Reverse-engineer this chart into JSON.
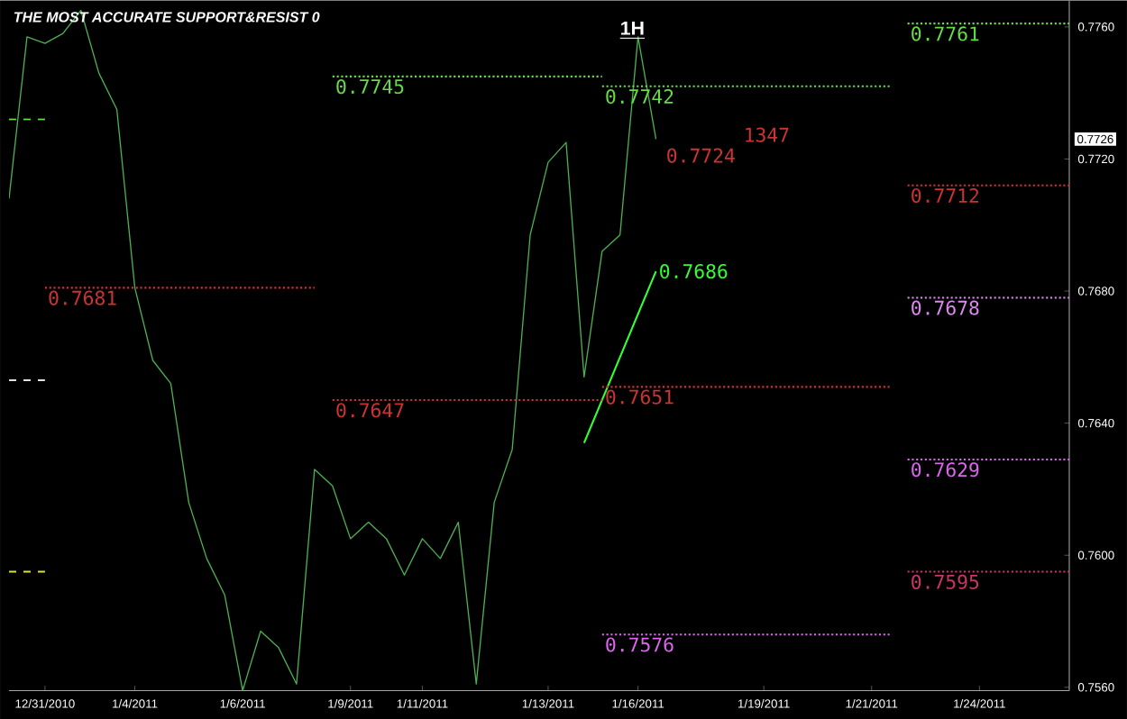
{
  "chart_data": {
    "type": "line",
    "title": "THE MOST ACCURATE SUPPORT&RESIST 0",
    "subtitle": "1H",
    "categories": [
      null,
      null,
      "12/31/2010",
      null,
      null,
      null,
      null,
      "1/4/2011",
      null,
      null,
      null,
      null,
      null,
      "1/6/2011",
      null,
      null,
      null,
      null,
      null,
      "1/9/2011",
      null,
      null,
      null,
      "1/11/2011",
      null,
      null,
      null,
      null,
      null,
      null,
      "1/13/2011",
      null,
      null,
      null,
      null,
      "1/16/2011",
      null,
      null,
      null,
      null,
      null,
      null,
      "1/19/2011",
      null,
      null,
      null,
      null,
      null,
      "1/21/2011",
      null,
      null,
      null,
      null,
      null,
      "1/24/2011",
      null,
      null,
      null,
      null,
      null
    ],
    "ylim": [
      0.7559,
      0.7768
    ],
    "yticks": [
      {
        "value": 0.756,
        "label": "0.7560"
      },
      {
        "value": 0.76,
        "label": "0.7600"
      },
      {
        "value": 0.764,
        "label": "0.7640"
      },
      {
        "value": 0.768,
        "label": "0.7680"
      },
      {
        "value": 0.772,
        "label": "0.7720"
      },
      {
        "value": 0.776,
        "label": "0.7760"
      }
    ],
    "grid": false,
    "marker": "none",
    "series": [
      {
        "color": "#4caf50",
        "line_style": "solid",
        "values": [
          0.7708,
          0.7757,
          0.7755,
          0.7758,
          0.7765,
          0.7746,
          0.7735,
          0.7681,
          0.7659,
          0.7652,
          0.7616,
          0.7599,
          0.7588,
          0.7559,
          0.7577,
          0.7572,
          0.7561,
          0.7626,
          0.7621,
          0.7605,
          0.761,
          0.7605,
          0.7594,
          0.7605,
          0.7599,
          0.761,
          0.7561,
          0.7616,
          0.7632,
          0.7697,
          0.7719,
          0.7725,
          0.7654,
          0.7692,
          0.7697,
          0.7757,
          0.7726,
          null,
          null,
          null,
          null,
          null,
          null,
          null,
          null,
          null,
          null,
          null,
          null,
          null,
          null,
          null,
          null,
          null,
          null,
          null,
          null,
          null,
          null,
          null
        ]
      },
      {
        "color": "#33ff33",
        "line_style": "solid",
        "values": [
          null,
          null,
          null,
          null,
          null,
          null,
          null,
          null,
          null,
          null,
          null,
          null,
          null,
          null,
          null,
          null,
          null,
          null,
          null,
          null,
          null,
          null,
          null,
          null,
          null,
          null,
          null,
          null,
          null,
          null,
          null,
          null,
          0.7634,
          0.7647,
          0.766,
          0.7673,
          0.7686,
          null,
          null,
          null,
          null,
          null,
          null,
          null,
          null,
          null,
          null,
          null,
          null,
          null,
          null,
          null,
          null,
          null,
          null,
          null,
          null,
          null,
          null,
          null
        ],
        "value_labels": [
          null,
          null,
          null,
          null,
          null,
          null,
          null,
          null,
          null,
          null,
          null,
          null,
          null,
          null,
          null,
          null,
          null,
          null,
          null,
          null,
          null,
          null,
          null,
          null,
          null,
          null,
          null,
          null,
          null,
          null,
          null,
          null,
          null,
          null,
          null,
          null,
          "0.7686",
          null,
          null,
          null,
          null,
          null,
          null,
          null,
          null,
          null,
          null,
          null,
          null,
          null,
          null,
          null,
          null,
          null,
          null,
          null,
          null,
          null,
          null,
          null
        ]
      },
      {
        "color": "#66dd44",
        "line_style": "dotted",
        "values": [
          null,
          null,
          null,
          null,
          null,
          null,
          null,
          null,
          null,
          null,
          null,
          null,
          null,
          null,
          null,
          null,
          null,
          null,
          null,
          null,
          null,
          null,
          null,
          null,
          null,
          null,
          null,
          null,
          null,
          null,
          null,
          null,
          null,
          null,
          null,
          null,
          null,
          null,
          null,
          null,
          null,
          null,
          null,
          null,
          null,
          null,
          null,
          null,
          null,
          null,
          0.7761,
          0.7761,
          0.7761,
          0.7761,
          0.7761,
          0.7761,
          0.7761,
          0.7761,
          0.7761,
          0.7761
        ],
        "value_labels": [
          null,
          null,
          null,
          null,
          null,
          null,
          null,
          null,
          null,
          null,
          null,
          null,
          null,
          null,
          null,
          null,
          null,
          null,
          null,
          null,
          null,
          null,
          null,
          null,
          null,
          null,
          null,
          null,
          null,
          null,
          null,
          null,
          null,
          null,
          null,
          null,
          null,
          null,
          null,
          null,
          null,
          null,
          null,
          null,
          null,
          null,
          null,
          null,
          null,
          null,
          "0.7761",
          null,
          null,
          null,
          null,
          null,
          null,
          null,
          null,
          null
        ]
      },
      {
        "color": "#66dd44",
        "line_style": "dotted",
        "values": [
          null,
          null,
          null,
          null,
          null,
          null,
          null,
          null,
          null,
          null,
          null,
          null,
          null,
          null,
          null,
          null,
          null,
          null,
          0.7745,
          0.7745,
          0.7745,
          0.7745,
          0.7745,
          0.7745,
          0.7745,
          0.7745,
          0.7745,
          0.7745,
          0.7745,
          0.7745,
          0.7745,
          0.7745,
          0.7745,
          0.7745,
          null,
          null,
          null,
          null,
          null,
          null,
          null,
          null,
          null,
          null,
          null,
          null,
          null,
          null,
          null,
          null,
          null,
          null,
          null,
          null,
          null,
          null,
          null,
          null,
          null,
          null
        ],
        "value_labels": [
          null,
          null,
          null,
          null,
          null,
          null,
          null,
          null,
          null,
          null,
          null,
          null,
          null,
          null,
          null,
          null,
          null,
          null,
          "0.7745",
          null,
          null,
          null,
          null,
          null,
          null,
          null,
          null,
          null,
          null,
          null,
          null,
          null,
          null,
          null,
          null,
          null,
          null,
          null,
          null,
          null,
          null,
          null,
          null,
          null,
          null,
          null,
          null,
          null,
          null,
          null,
          null,
          null,
          null,
          null,
          null,
          null,
          null,
          null,
          null,
          null
        ]
      },
      {
        "color": "#66dd44",
        "line_style": "dotted",
        "values": [
          null,
          null,
          null,
          null,
          null,
          null,
          null,
          null,
          null,
          null,
          null,
          null,
          null,
          null,
          null,
          null,
          null,
          null,
          null,
          null,
          null,
          null,
          null,
          null,
          null,
          null,
          null,
          null,
          null,
          null,
          null,
          null,
          null,
          0.7742,
          0.7742,
          0.7742,
          0.7742,
          0.7742,
          0.7742,
          0.7742,
          0.7742,
          0.7742,
          0.7742,
          0.7742,
          0.7742,
          0.7742,
          0.7742,
          0.7742,
          0.7742,
          0.7742,
          null,
          null,
          null,
          null,
          null,
          null,
          null,
          null,
          null,
          null
        ],
        "value_labels": [
          null,
          null,
          null,
          null,
          null,
          null,
          null,
          null,
          null,
          null,
          null,
          null,
          null,
          null,
          null,
          null,
          null,
          null,
          null,
          null,
          null,
          null,
          null,
          null,
          null,
          null,
          null,
          null,
          null,
          null,
          null,
          null,
          null,
          "0.7742",
          null,
          null,
          null,
          null,
          null,
          null,
          null,
          null,
          null,
          null,
          null,
          null,
          null,
          null,
          null,
          null,
          null,
          null,
          null,
          null,
          null,
          null,
          null,
          null,
          null,
          null
        ]
      },
      {
        "color": "#cc3333",
        "line_style": "dotted",
        "values": [
          null,
          null,
          null,
          null,
          null,
          null,
          null,
          null,
          null,
          null,
          null,
          null,
          null,
          null,
          null,
          null,
          null,
          null,
          null,
          null,
          null,
          null,
          null,
          null,
          null,
          null,
          null,
          null,
          null,
          null,
          null,
          null,
          null,
          null,
          null,
          null,
          null,
          null,
          null,
          null,
          null,
          null,
          null,
          null,
          null,
          null,
          null,
          null,
          null,
          null,
          0.7712,
          0.7712,
          0.7712,
          0.7712,
          0.7712,
          0.7712,
          0.7712,
          0.7712,
          0.7712,
          0.7712
        ],
        "value_labels": [
          null,
          null,
          null,
          null,
          null,
          null,
          null,
          null,
          null,
          null,
          null,
          null,
          null,
          null,
          null,
          null,
          null,
          null,
          null,
          null,
          null,
          null,
          null,
          null,
          null,
          null,
          null,
          null,
          null,
          null,
          null,
          null,
          null,
          null,
          null,
          null,
          null,
          null,
          null,
          null,
          null,
          null,
          null,
          null,
          null,
          null,
          null,
          null,
          null,
          null,
          "0.7712",
          null,
          null,
          null,
          null,
          null,
          null,
          null,
          null,
          null
        ]
      },
      {
        "color": "#cc3333",
        "line_style": "dotted",
        "values": [
          null,
          null,
          0.7681,
          0.7681,
          0.7681,
          0.7681,
          0.7681,
          0.7681,
          0.7681,
          0.7681,
          0.7681,
          0.7681,
          0.7681,
          0.7681,
          0.7681,
          0.7681,
          0.7681,
          0.7681,
          null,
          null,
          null,
          null,
          null,
          null,
          null,
          null,
          null,
          null,
          null,
          null,
          null,
          null,
          null,
          null,
          null,
          null,
          null,
          null,
          null,
          null,
          null,
          null,
          null,
          null,
          null,
          null,
          null,
          null,
          null,
          null,
          null,
          null,
          null,
          null,
          null,
          null,
          null,
          null,
          null,
          null
        ],
        "value_labels": [
          null,
          null,
          "0.7681",
          null,
          null,
          null,
          null,
          null,
          null,
          null,
          null,
          null,
          null,
          null,
          null,
          null,
          null,
          null,
          null,
          null,
          null,
          null,
          null,
          null,
          null,
          null,
          null,
          null,
          null,
          null,
          null,
          null,
          null,
          null,
          null,
          null,
          null,
          null,
          null,
          null,
          null,
          null,
          null,
          null,
          null,
          null,
          null,
          null,
          null,
          null,
          null,
          null,
          null,
          null,
          null,
          null,
          null,
          null,
          null,
          null
        ]
      },
      {
        "color": "#dd88ee",
        "line_style": "dotted",
        "values": [
          null,
          null,
          null,
          null,
          null,
          null,
          null,
          null,
          null,
          null,
          null,
          null,
          null,
          null,
          null,
          null,
          null,
          null,
          null,
          null,
          null,
          null,
          null,
          null,
          null,
          null,
          null,
          null,
          null,
          null,
          null,
          null,
          null,
          null,
          null,
          null,
          null,
          null,
          null,
          null,
          null,
          null,
          null,
          null,
          null,
          null,
          null,
          null,
          null,
          null,
          0.7678,
          0.7678,
          0.7678,
          0.7678,
          0.7678,
          0.7678,
          0.7678,
          0.7678,
          0.7678,
          0.7678
        ],
        "value_labels": [
          null,
          null,
          null,
          null,
          null,
          null,
          null,
          null,
          null,
          null,
          null,
          null,
          null,
          null,
          null,
          null,
          null,
          null,
          null,
          null,
          null,
          null,
          null,
          null,
          null,
          null,
          null,
          null,
          null,
          null,
          null,
          null,
          null,
          null,
          null,
          null,
          null,
          null,
          null,
          null,
          null,
          null,
          null,
          null,
          null,
          null,
          null,
          null,
          null,
          null,
          "0.7678",
          null,
          null,
          null,
          null,
          null,
          null,
          null,
          null,
          null
        ]
      },
      {
        "color": "#cc3333",
        "line_style": "dotted",
        "values": [
          null,
          null,
          null,
          null,
          null,
          null,
          null,
          null,
          null,
          null,
          null,
          null,
          null,
          null,
          null,
          null,
          null,
          null,
          null,
          null,
          null,
          null,
          null,
          null,
          null,
          null,
          null,
          null,
          null,
          null,
          null,
          null,
          null,
          0.7651,
          0.7651,
          0.7651,
          0.7651,
          0.7651,
          0.7651,
          0.7651,
          0.7651,
          0.7651,
          0.7651,
          0.7651,
          0.7651,
          0.7651,
          0.7651,
          0.7651,
          0.7651,
          0.7651,
          null,
          null,
          null,
          null,
          null,
          null,
          null,
          null,
          null,
          null
        ],
        "value_labels": [
          null,
          null,
          null,
          null,
          null,
          null,
          null,
          null,
          null,
          null,
          null,
          null,
          null,
          null,
          null,
          null,
          null,
          null,
          null,
          null,
          null,
          null,
          null,
          null,
          null,
          null,
          null,
          null,
          null,
          null,
          null,
          null,
          null,
          "0.7651",
          null,
          null,
          null,
          null,
          null,
          null,
          null,
          null,
          null,
          null,
          null,
          null,
          null,
          null,
          null,
          null,
          null,
          null,
          null,
          null,
          null,
          null,
          null,
          null,
          null,
          null
        ]
      },
      {
        "color": "#cc3333",
        "line_style": "dotted",
        "values": [
          null,
          null,
          null,
          null,
          null,
          null,
          null,
          null,
          null,
          null,
          null,
          null,
          null,
          null,
          null,
          null,
          null,
          null,
          0.7647,
          0.7647,
          0.7647,
          0.7647,
          0.7647,
          0.7647,
          0.7647,
          0.7647,
          0.7647,
          0.7647,
          0.7647,
          0.7647,
          0.7647,
          0.7647,
          0.7647,
          0.7647,
          null,
          null,
          null,
          null,
          null,
          null,
          null,
          null,
          null,
          null,
          null,
          null,
          null,
          null,
          null,
          null,
          null,
          null,
          null,
          null,
          null,
          null,
          null,
          null,
          null,
          null
        ],
        "value_labels": [
          null,
          null,
          null,
          null,
          null,
          null,
          null,
          null,
          null,
          null,
          null,
          null,
          null,
          null,
          null,
          null,
          null,
          null,
          "0.7647",
          null,
          null,
          null,
          null,
          null,
          null,
          null,
          null,
          null,
          null,
          null,
          null,
          null,
          null,
          null,
          null,
          null,
          null,
          null,
          null,
          null,
          null,
          null,
          null,
          null,
          null,
          null,
          null,
          null,
          null,
          null,
          null,
          null,
          null,
          null,
          null,
          null,
          null,
          null,
          null,
          null
        ]
      },
      {
        "color": "#dd66ee",
        "line_style": "dotted",
        "values": [
          null,
          null,
          null,
          null,
          null,
          null,
          null,
          null,
          null,
          null,
          null,
          null,
          null,
          null,
          null,
          null,
          null,
          null,
          null,
          null,
          null,
          null,
          null,
          null,
          null,
          null,
          null,
          null,
          null,
          null,
          null,
          null,
          null,
          null,
          null,
          null,
          null,
          null,
          null,
          null,
          null,
          null,
          null,
          null,
          null,
          null,
          null,
          null,
          null,
          null,
          0.7629,
          0.7629,
          0.7629,
          0.7629,
          0.7629,
          0.7629,
          0.7629,
          0.7629,
          0.7629,
          0.7629
        ],
        "value_labels": [
          null,
          null,
          null,
          null,
          null,
          null,
          null,
          null,
          null,
          null,
          null,
          null,
          null,
          null,
          null,
          null,
          null,
          null,
          null,
          null,
          null,
          null,
          null,
          null,
          null,
          null,
          null,
          null,
          null,
          null,
          null,
          null,
          null,
          null,
          null,
          null,
          null,
          null,
          null,
          null,
          null,
          null,
          null,
          null,
          null,
          null,
          null,
          null,
          null,
          null,
          "0.7629",
          null,
          null,
          null,
          null,
          null,
          null,
          null,
          null,
          null
        ]
      },
      {
        "color": "#cc3366",
        "line_style": "dotted",
        "values": [
          null,
          null,
          null,
          null,
          null,
          null,
          null,
          null,
          null,
          null,
          null,
          null,
          null,
          null,
          null,
          null,
          null,
          null,
          null,
          null,
          null,
          null,
          null,
          null,
          null,
          null,
          null,
          null,
          null,
          null,
          null,
          null,
          null,
          null,
          null,
          null,
          null,
          null,
          null,
          null,
          null,
          null,
          null,
          null,
          null,
          null,
          null,
          null,
          null,
          null,
          0.7595,
          0.7595,
          0.7595,
          0.7595,
          0.7595,
          0.7595,
          0.7595,
          0.7595,
          0.7595,
          0.7595
        ],
        "value_labels": [
          null,
          null,
          null,
          null,
          null,
          null,
          null,
          null,
          null,
          null,
          null,
          null,
          null,
          null,
          null,
          null,
          null,
          null,
          null,
          null,
          null,
          null,
          null,
          null,
          null,
          null,
          null,
          null,
          null,
          null,
          null,
          null,
          null,
          null,
          null,
          null,
          null,
          null,
          null,
          null,
          null,
          null,
          null,
          null,
          null,
          null,
          null,
          null,
          null,
          null,
          "0.7595",
          null,
          null,
          null,
          null,
          null,
          null,
          null,
          null,
          null
        ]
      },
      {
        "color": "#dd66ee",
        "line_style": "dotted",
        "values": [
          null,
          null,
          null,
          null,
          null,
          null,
          null,
          null,
          null,
          null,
          null,
          null,
          null,
          null,
          null,
          null,
          null,
          null,
          null,
          null,
          null,
          null,
          null,
          null,
          null,
          null,
          null,
          null,
          null,
          null,
          null,
          null,
          null,
          0.7576,
          0.7576,
          0.7576,
          0.7576,
          0.7576,
          0.7576,
          0.7576,
          0.7576,
          0.7576,
          0.7576,
          0.7576,
          0.7576,
          0.7576,
          0.7576,
          0.7576,
          0.7576,
          0.7576,
          null,
          null,
          null,
          null,
          null,
          null,
          null,
          null,
          null,
          null
        ],
        "value_labels": [
          null,
          null,
          null,
          null,
          null,
          null,
          null,
          null,
          null,
          null,
          null,
          null,
          null,
          null,
          null,
          null,
          null,
          null,
          null,
          null,
          null,
          null,
          null,
          null,
          null,
          null,
          null,
          null,
          null,
          null,
          null,
          null,
          null,
          "0.7576",
          null,
          null,
          null,
          null,
          null,
          null,
          null,
          null,
          null,
          null,
          null,
          null,
          null,
          null,
          null,
          null,
          null,
          null,
          null,
          null,
          null,
          null,
          null,
          null,
          null,
          null
        ]
      },
      {
        "color": "#66dd44",
        "line_style": "dashed",
        "values": [
          0.7732,
          0.7732,
          0.7732,
          null,
          null,
          null,
          null,
          null,
          null,
          null,
          null,
          null,
          null,
          null,
          null,
          null,
          null,
          null,
          null,
          null,
          null,
          null,
          null,
          null,
          null,
          null,
          null,
          null,
          null,
          null,
          null,
          null,
          null,
          null,
          null,
          null,
          null,
          null,
          null,
          null,
          null,
          null,
          null,
          null,
          null,
          null,
          null,
          null,
          null,
          null,
          null,
          null,
          null,
          null,
          null,
          null,
          null,
          null,
          null,
          null
        ]
      },
      {
        "color": "#e0e0e0",
        "line_style": "dashed",
        "values": [
          0.7653,
          0.7653,
          0.7653,
          null,
          null,
          null,
          null,
          null,
          null,
          null,
          null,
          null,
          null,
          null,
          null,
          null,
          null,
          null,
          null,
          null,
          null,
          null,
          null,
          null,
          null,
          null,
          null,
          null,
          null,
          null,
          null,
          null,
          null,
          null,
          null,
          null,
          null,
          null,
          null,
          null,
          null,
          null,
          null,
          null,
          null,
          null,
          null,
          null,
          null,
          null,
          null,
          null,
          null,
          null,
          null,
          null,
          null,
          null,
          null,
          null
        ]
      },
      {
        "color": "#dddd44",
        "line_style": "dashed",
        "values": [
          0.7595,
          0.7595,
          0.7595,
          null,
          null,
          null,
          null,
          null,
          null,
          null,
          null,
          null,
          null,
          null,
          null,
          null,
          null,
          null,
          null,
          null,
          null,
          null,
          null,
          null,
          null,
          null,
          null,
          null,
          null,
          null,
          null,
          null,
          null,
          null,
          null,
          null,
          null,
          null,
          null,
          null,
          null,
          null,
          null,
          null,
          null,
          null,
          null,
          null,
          null,
          null,
          null,
          null,
          null,
          null,
          null,
          null,
          null,
          null,
          null,
          null
        ]
      }
    ],
    "annotations": [
      "1347",
      "0.7724",
      {
        "text": "0.7726",
        "y": 0.7726
      }
    ]
  }
}
